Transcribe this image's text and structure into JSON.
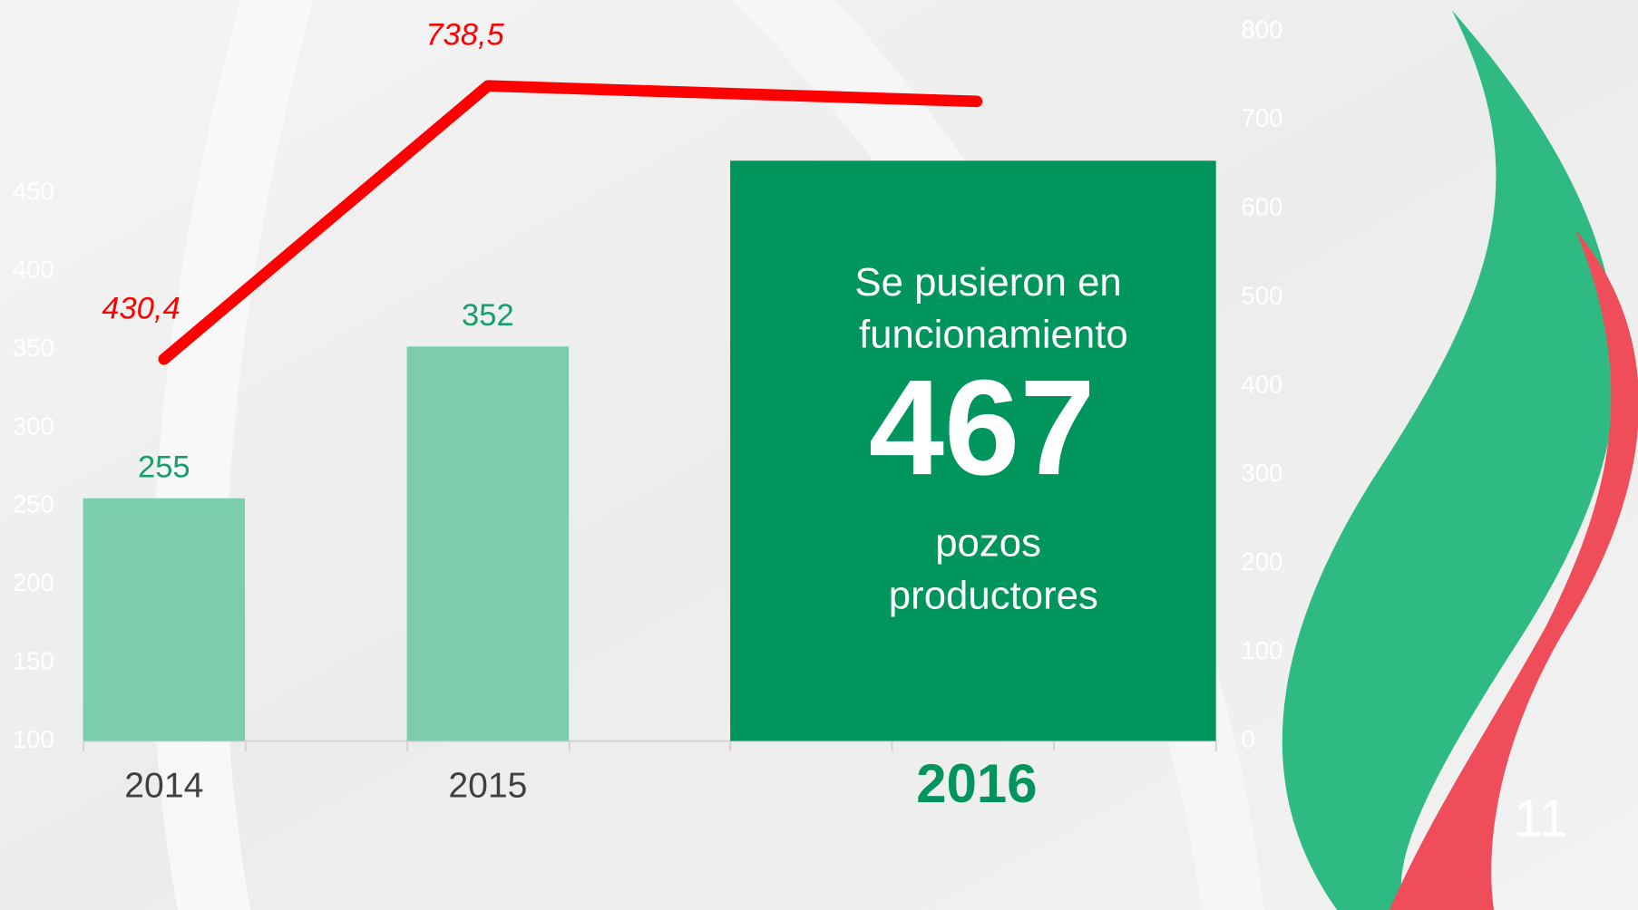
{
  "chart_data": {
    "type": "bar_line",
    "categories": [
      "2014",
      "2015",
      "2016"
    ],
    "series": [
      {
        "type": "bar",
        "color": "#7ccdad",
        "values": [
          255,
          352,
          null
        ]
      },
      {
        "type": "line",
        "axis": "y2",
        "color": "#ff0000",
        "values": [
          430.4,
          738.5,
          721
        ],
        "value_labels": [
          "430,4",
          "738,5",
          null
        ]
      }
    ],
    "ylim": [
      100,
      550
    ],
    "yticks": [
      100,
      150,
      200,
      250,
      300,
      350,
      400,
      450
    ],
    "y2lim": [
      0,
      800
    ],
    "y2ticks": [
      0,
      100,
      200,
      300,
      400,
      500,
      600,
      700,
      800
    ],
    "highlight": {
      "color": "#00955c",
      "line1": "Se pusieron en",
      "line2": "funcionamiento",
      "number": "467",
      "line3": "pozos",
      "line4": "productores"
    },
    "page_number": "11"
  }
}
